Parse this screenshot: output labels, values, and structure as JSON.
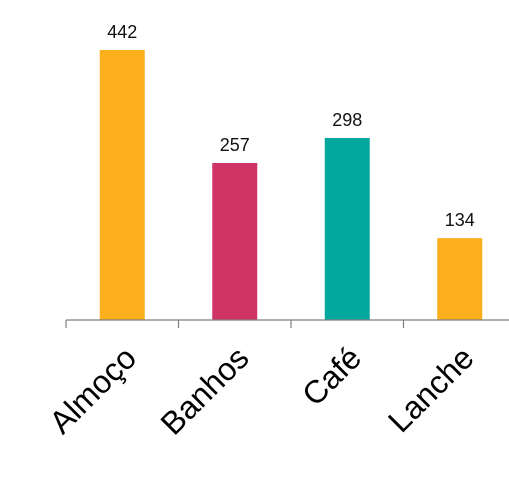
{
  "chart_data": {
    "type": "bar",
    "title": "",
    "xlabel": "",
    "ylabel": "",
    "categories": [
      "Almoço",
      "Banhos",
      "Café",
      "Lanche"
    ],
    "values": [
      442,
      257,
      298,
      134
    ],
    "data_labels": [
      "442",
      "257",
      "298",
      "134"
    ],
    "bar_colors": [
      "#FBAF1C",
      "#D03366",
      "#02A89E",
      "#FBAF1C"
    ],
    "ylim": [
      0,
      500
    ],
    "grid": false,
    "legend": "none",
    "y_axis_visible": false,
    "category_label_rotation_deg": -45
  }
}
